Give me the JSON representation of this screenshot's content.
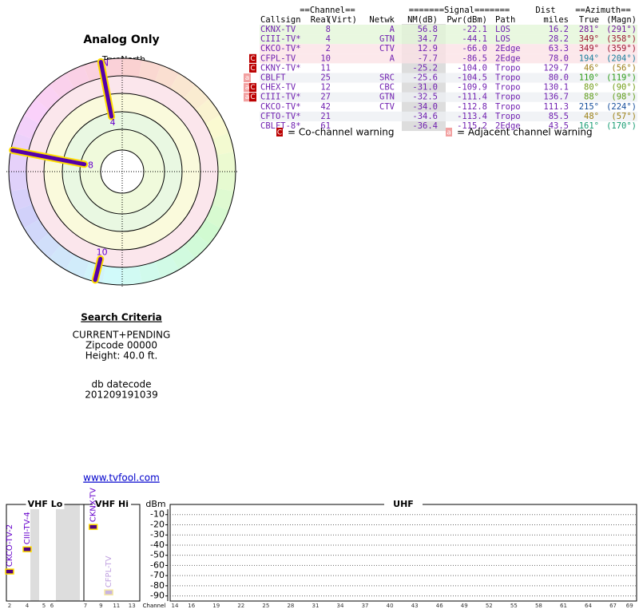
{
  "polar": {
    "title": "Analog Only",
    "north_label": "TrueNorth",
    "n": "N",
    "rays": [
      "2",
      "4",
      "8",
      "10"
    ]
  },
  "table": {
    "group_headers": [
      "==Channel==",
      "=======Signal=======",
      "Dist",
      "==Azimuth=="
    ],
    "columns": [
      "Callsign",
      "Real",
      "(Virt)",
      "Netwk",
      "NM(dB)",
      "Pwr(dBm)",
      "Path",
      "miles",
      "True",
      "(Magn)"
    ],
    "rows": [
      {
        "callsign": "CKNX-TV",
        "real": "8",
        "netwk": "A",
        "nm": "56.8",
        "pwr": "-22.1",
        "path": "LOS",
        "miles": "16.2",
        "true": "281°",
        "magn": "(291°)"
      },
      {
        "callsign": "CIII-TV*",
        "real": "4",
        "netwk": "GTN",
        "nm": "34.7",
        "pwr": "-44.1",
        "path": "LOS",
        "miles": "28.2",
        "true": "349°",
        "magn": "(358°)"
      },
      {
        "callsign": "CKCO-TV*",
        "real": "2",
        "netwk": "CTV",
        "nm": "12.9",
        "pwr": "-66.0",
        "path": "2Edge",
        "miles": "63.3",
        "true": "349°",
        "magn": "(359°)"
      },
      {
        "callsign": "CFPL-TV",
        "real": "10",
        "netwk": "A",
        "nm": "-7.7",
        "pwr": "-86.5",
        "path": "2Edge",
        "miles": "78.0",
        "true": "194°",
        "magn": "(204°)",
        "flags": [
          "C"
        ]
      },
      {
        "callsign": "CKNY-TV*",
        "real": "11",
        "nm": "-25.2",
        "pwr": "-104.0",
        "path": "Tropo",
        "miles": "129.7",
        "true": "46°",
        "magn": "(56°)",
        "flags": [
          "C"
        ]
      },
      {
        "callsign": "CBLFT",
        "real": "25",
        "netwk": "SRC",
        "nm": "-25.6",
        "pwr": "-104.5",
        "path": "Tropo",
        "miles": "80.0",
        "true": "110°",
        "magn": "(119°)",
        "flags": [
          "a"
        ]
      },
      {
        "callsign": "CHEX-TV",
        "real": "12",
        "netwk": "CBC",
        "nm": "-31.0",
        "pwr": "-109.9",
        "path": "Tropo",
        "miles": "130.1",
        "true": "80°",
        "magn": "(90°)",
        "flags": [
          "a",
          "C"
        ]
      },
      {
        "callsign": "CIII-TV*",
        "real": "27",
        "netwk": "GTN",
        "nm": "-32.5",
        "pwr": "-111.4",
        "path": "Tropo",
        "miles": "136.7",
        "true": "88°",
        "magn": "(98°)",
        "flags": [
          "a",
          "C"
        ]
      },
      {
        "callsign": "CKCO-TV*",
        "real": "42",
        "netwk": "CTV",
        "nm": "-34.0",
        "pwr": "-112.8",
        "path": "Tropo",
        "miles": "111.3",
        "true": "215°",
        "magn": "(224°)"
      },
      {
        "callsign": "CFTO-TV*",
        "real": "21",
        "nm": "-34.6",
        "pwr": "-113.4",
        "path": "Tropo",
        "miles": "85.5",
        "true": "48°",
        "magn": "(57°)"
      },
      {
        "callsign": "CBLFT-8*",
        "real": "61",
        "nm": "-36.4",
        "pwr": "-115.2",
        "path": "2Edge",
        "miles": "43.5",
        "true": "161°",
        "magn": "(170°)"
      }
    ]
  },
  "legend": {
    "co_symbol": "C",
    "co_text": "= Co-channel warning",
    "adj_symbol": "a",
    "adj_text": "= Adjacent channel warning"
  },
  "search": {
    "heading": "Search Criteria",
    "lines": [
      "CURRENT+PENDING",
      "Zipcode 00000",
      "Height: 40.0 ft."
    ],
    "datecode_label": "db datecode",
    "datecode": "201209191039"
  },
  "link": "www.tvfool.com",
  "spectrum": {
    "y_label": "dBm",
    "ylim": [
      0,
      -95
    ],
    "yticks": [
      -10,
      -20,
      -30,
      -40,
      -50,
      -60,
      -70,
      -80,
      -90
    ],
    "channel_label": "Channel",
    "vhf_lo": {
      "label": "VHF Lo",
      "channels": [
        2,
        4,
        5,
        6
      ]
    },
    "vhf_hi": {
      "label": "VHF Hi",
      "channels": [
        7,
        9,
        11,
        13
      ]
    },
    "uhf": {
      "label": "UHF",
      "channels": [
        14,
        16,
        19,
        22,
        25,
        28,
        31,
        34,
        37,
        40,
        43,
        46,
        49,
        52,
        55,
        58,
        61,
        64,
        67,
        69
      ]
    },
    "stations": [
      {
        "name": "CKCO-TV-2",
        "channel": 2,
        "dbm": -66.0
      },
      {
        "name": "CIII-TV-4",
        "channel": 4,
        "dbm": -44.1
      },
      {
        "name": "CKNX-TV",
        "channel": 8,
        "dbm": -22.1
      },
      {
        "name": "CFPL-TV",
        "channel": 10,
        "dbm": -86.5
      }
    ]
  }
}
